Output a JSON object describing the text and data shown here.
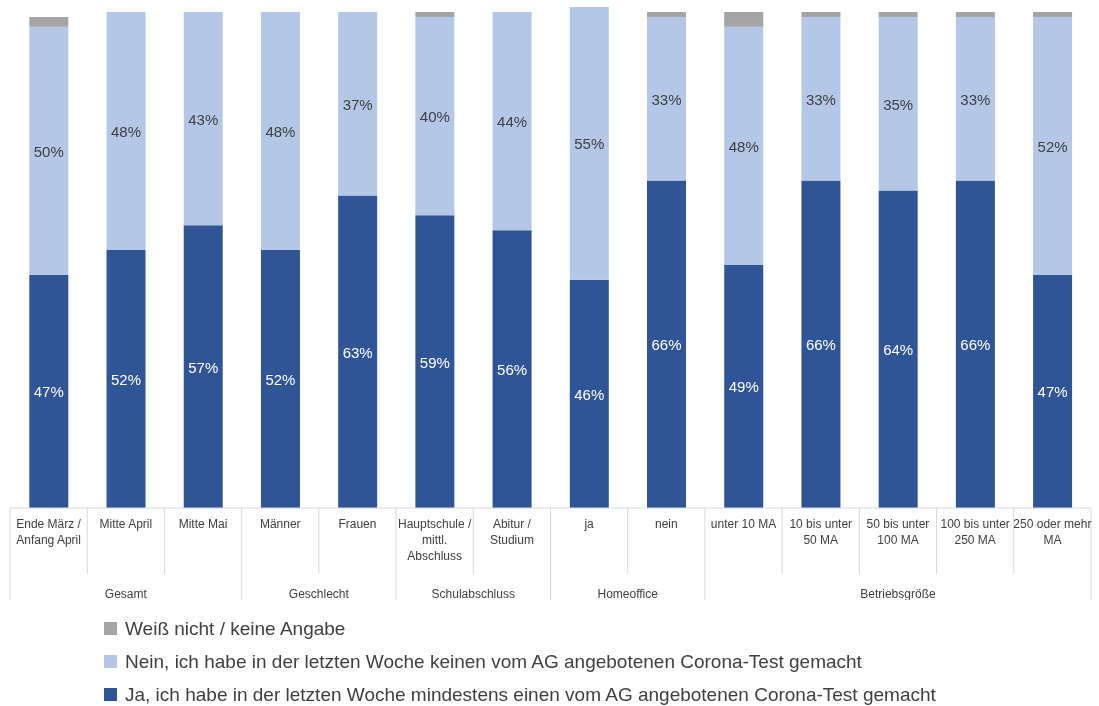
{
  "chart_data": {
    "type": "bar",
    "stacked": true,
    "legend": "bottom",
    "categories": [
      "Ende März / Anfang April",
      "Mitte April",
      "Mitte Mai",
      "Männer",
      "Frauen",
      "Hauptschule / mittl. Abschluss",
      "Abitur / Studium",
      "ja",
      "nein",
      "unter 10 MA",
      "10 bis unter 50 MA",
      "50 bis unter 100 MA",
      "100 bis unter 250 MA",
      "250 oder mehr MA"
    ],
    "series": [
      {
        "name": "Ja, ich habe in der letzten Woche mindestens einen vom AG angebotenen Corona-Test gemacht",
        "color": "#2f5597",
        "values": [
          47,
          52,
          57,
          52,
          63,
          59,
          56,
          46,
          66,
          49,
          66,
          64,
          66,
          47
        ],
        "value_labels": [
          "47%",
          "52%",
          "57%",
          "52%",
          "63%",
          "59%",
          "56%",
          "46%",
          "66%",
          "49%",
          "66%",
          "64%",
          "66%",
          "47%"
        ]
      },
      {
        "name": "Nein, ich habe in der letzten Woche keinen vom AG angebotenen Corona-Test gemacht",
        "color": "#b4c7e7",
        "values": [
          50,
          48,
          43,
          48,
          37,
          40,
          44,
          55,
          33,
          48,
          33,
          35,
          33,
          52
        ],
        "value_labels": [
          "50%",
          "48%",
          "43%",
          "48%",
          "37%",
          "40%",
          "44%",
          "55%",
          "33%",
          "48%",
          "33%",
          "35%",
          "33%",
          "52%"
        ]
      },
      {
        "name": "Weiß nicht / keine Angabe",
        "color": "#a5a5a5",
        "values": [
          2,
          0,
          0,
          0,
          0,
          1,
          0,
          0,
          1,
          3,
          1,
          1,
          1,
          1
        ],
        "value_labels": [
          null,
          null,
          null,
          null,
          null,
          null,
          null,
          null,
          null,
          null,
          null,
          null,
          null,
          null
        ]
      }
    ],
    "annotations": [
      "Gesamt",
      "Geschlecht",
      "Schulabschluss",
      "Homeoffice",
      "Betriebsgröße"
    ]
  }
}
